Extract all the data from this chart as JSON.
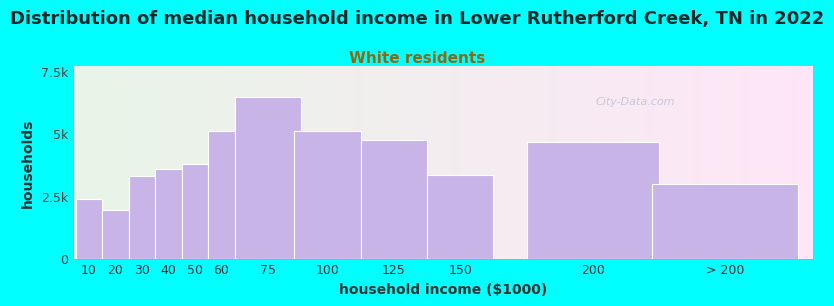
{
  "title": "Distribution of median household income in Lower Rutherford Creek, TN in 2022",
  "subtitle": "White residents",
  "xlabel": "household income ($1000)",
  "ylabel": "households",
  "background_color": "#00FFFF",
  "bar_color": "#c9b4e8",
  "bar_edge_color": "#ffffff",
  "categories": [
    "10",
    "20",
    "30",
    "40",
    "50",
    "60",
    "75",
    "100",
    "125",
    "150",
    "200",
    "> 200"
  ],
  "values": [
    2400,
    1950,
    3300,
    3600,
    3800,
    5100,
    6450,
    5100,
    4750,
    3350,
    4650,
    3000
  ],
  "bin_lefts": [
    5,
    15,
    25,
    35,
    45,
    55,
    65,
    87.5,
    112.5,
    137.5,
    175,
    222.5
  ],
  "bin_widths": [
    10,
    10,
    10,
    10,
    10,
    10,
    25,
    25,
    25,
    25,
    50,
    55
  ],
  "ylim": [
    0,
    7700
  ],
  "yticks": [
    0,
    2500,
    5000,
    7500
  ],
  "ytick_labels": [
    "0",
    "2.5k",
    "5k",
    "7.5k"
  ],
  "title_fontsize": 13,
  "subtitle_fontsize": 11,
  "subtitle_color": "#8B6914",
  "axis_label_fontsize": 10,
  "tick_fontsize": 9,
  "watermark": "City-Data.com",
  "title_color": "#1a2a2a"
}
